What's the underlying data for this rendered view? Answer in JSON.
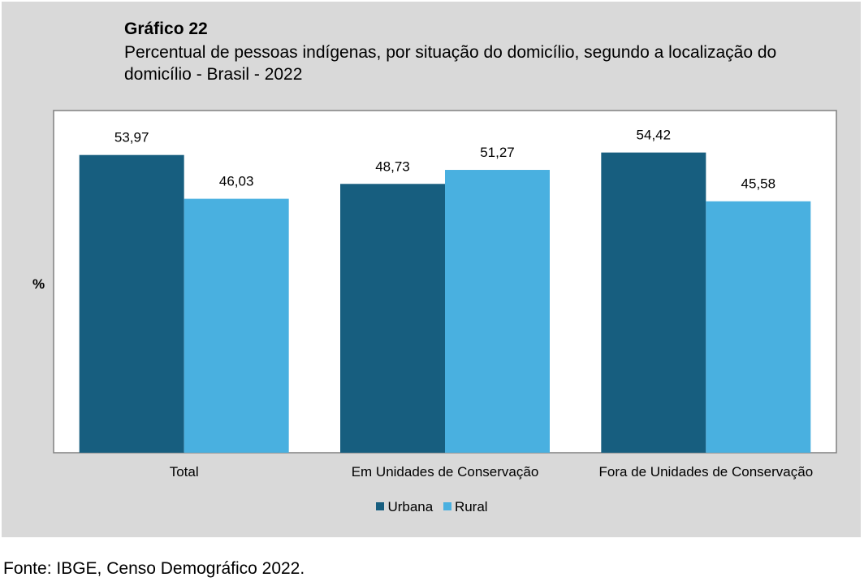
{
  "chart_data": {
    "type": "bar",
    "title": "Gráfico 22",
    "subtitle": "Percentual de pessoas indígenas, por situação do domicílio, segundo a localização do domicílio - Brasil - 2022",
    "ylabel": "%",
    "xlabel": "",
    "categories": [
      "Total",
      "Em Unidades de Conservação",
      "Fora de Unidades de Conservação"
    ],
    "series": [
      {
        "name": "Urbana",
        "values": [
          53.97,
          48.73,
          54.42
        ],
        "labels": [
          "53,97",
          "48,73",
          "54,42"
        ],
        "color": "#175e7f"
      },
      {
        "name": "Rural",
        "values": [
          46.03,
          51.27,
          45.58
        ],
        "labels": [
          "46,03",
          "51,27",
          "45,58"
        ],
        "color": "#49b0e0"
      }
    ],
    "ylim": [
      0,
      60
    ],
    "grid": false,
    "legend": "bottom-center"
  },
  "source": "Fonte: IBGE, Censo Demográfico 2022."
}
